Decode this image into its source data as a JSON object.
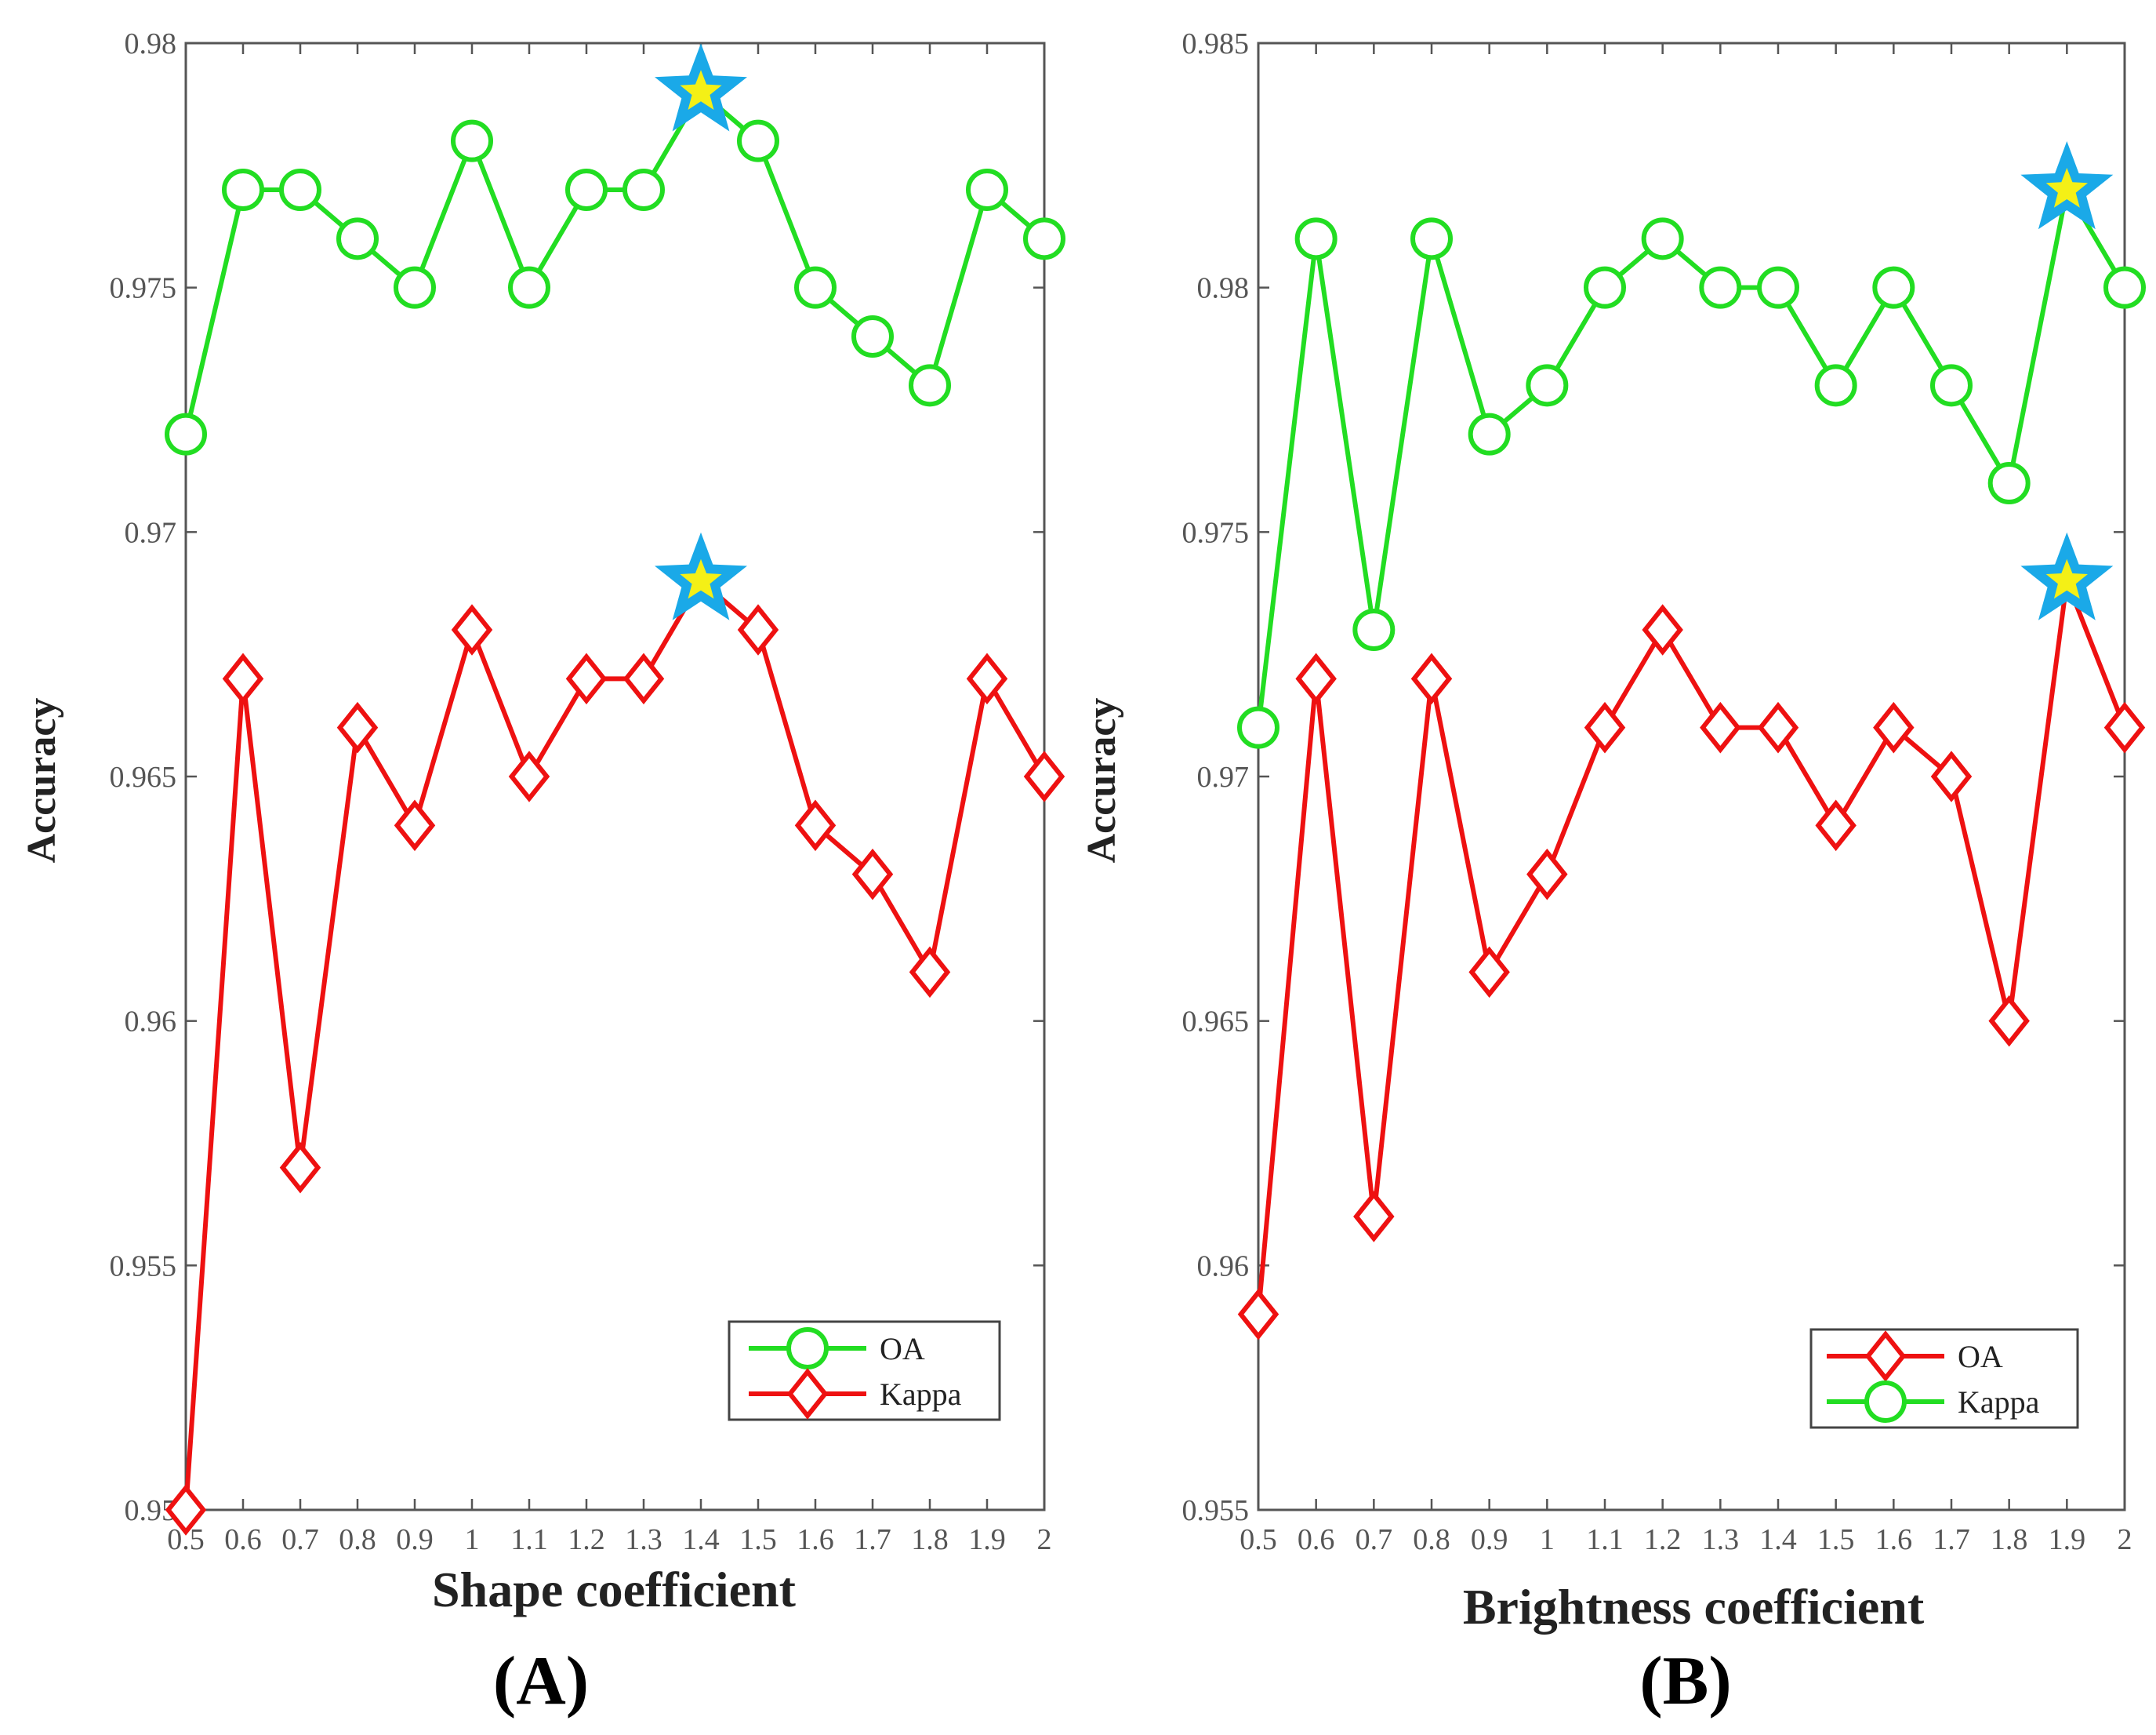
{
  "chart_data": [
    {
      "type": "line",
      "panel_label": "(A)",
      "xlabel": "Shape coefficient",
      "ylabel": "Accuracy",
      "categories": [
        "0.5",
        "0.6",
        "0.7",
        "0.8",
        "0.9",
        "1",
        "1.1",
        "1.2",
        "1.3",
        "1.4",
        "1.5",
        "1.6",
        "1.7",
        "1.8",
        "1.9",
        "2"
      ],
      "ylim": [
        0.95,
        0.98
      ],
      "yticks": [
        0.95,
        0.955,
        0.96,
        0.965,
        0.97,
        0.975,
        0.98
      ],
      "ytick_labels": [
        "0.95",
        "0.955",
        "0.96",
        "0.965",
        "0.97",
        "0.975",
        "0.98"
      ],
      "legend_position": "bottom-right",
      "series": [
        {
          "name": "OA",
          "color": "#22dd22",
          "marker": "circle",
          "values": [
            0.972,
            0.977,
            0.977,
            0.976,
            0.975,
            0.978,
            0.975,
            0.977,
            0.977,
            0.979,
            0.978,
            0.975,
            0.974,
            0.973,
            0.977,
            0.976
          ]
        },
        {
          "name": "Kappa",
          "color": "#ee1111",
          "marker": "diamond",
          "values": [
            0.95,
            0.967,
            0.957,
            0.966,
            0.964,
            0.968,
            0.965,
            0.967,
            0.967,
            0.969,
            0.968,
            0.964,
            0.963,
            0.961,
            0.967,
            0.965
          ]
        }
      ],
      "highlight_index": 9,
      "highlight_style": {
        "outer": "#1aa9e8",
        "inner": "#f4f016"
      }
    },
    {
      "type": "line",
      "panel_label": "(B)",
      "xlabel": "Brightness coefficient",
      "ylabel": "Accuracy",
      "categories": [
        "0.5",
        "0.6",
        "0.7",
        "0.8",
        "0.9",
        "1",
        "1.1",
        "1.2",
        "1.3",
        "1.4",
        "1.5",
        "1.6",
        "1.7",
        "1.8",
        "1.9",
        "2"
      ],
      "ylim": [
        0.955,
        0.985
      ],
      "yticks": [
        0.955,
        0.96,
        0.965,
        0.97,
        0.975,
        0.98,
        0.985
      ],
      "ytick_labels": [
        "0.955",
        "0.96",
        "0.965",
        "0.97",
        "0.975",
        "0.98",
        "0.985"
      ],
      "legend_position": "bottom-right",
      "series": [
        {
          "name": "OA",
          "color": "#ee1111",
          "marker": "diamond",
          "values": [
            0.959,
            0.972,
            0.961,
            0.972,
            0.966,
            0.968,
            0.971,
            0.973,
            0.971,
            0.971,
            0.969,
            0.971,
            0.97,
            0.965,
            0.974,
            0.971
          ]
        },
        {
          "name": "Kappa",
          "color": "#22dd22",
          "marker": "circle",
          "values": [
            0.971,
            0.981,
            0.973,
            0.981,
            0.977,
            0.978,
            0.98,
            0.981,
            0.98,
            0.98,
            0.978,
            0.98,
            0.978,
            0.976,
            0.982,
            0.98
          ]
        }
      ],
      "highlight_index": 14,
      "highlight_style": {
        "outer": "#1aa9e8",
        "inner": "#f4f016"
      }
    }
  ]
}
